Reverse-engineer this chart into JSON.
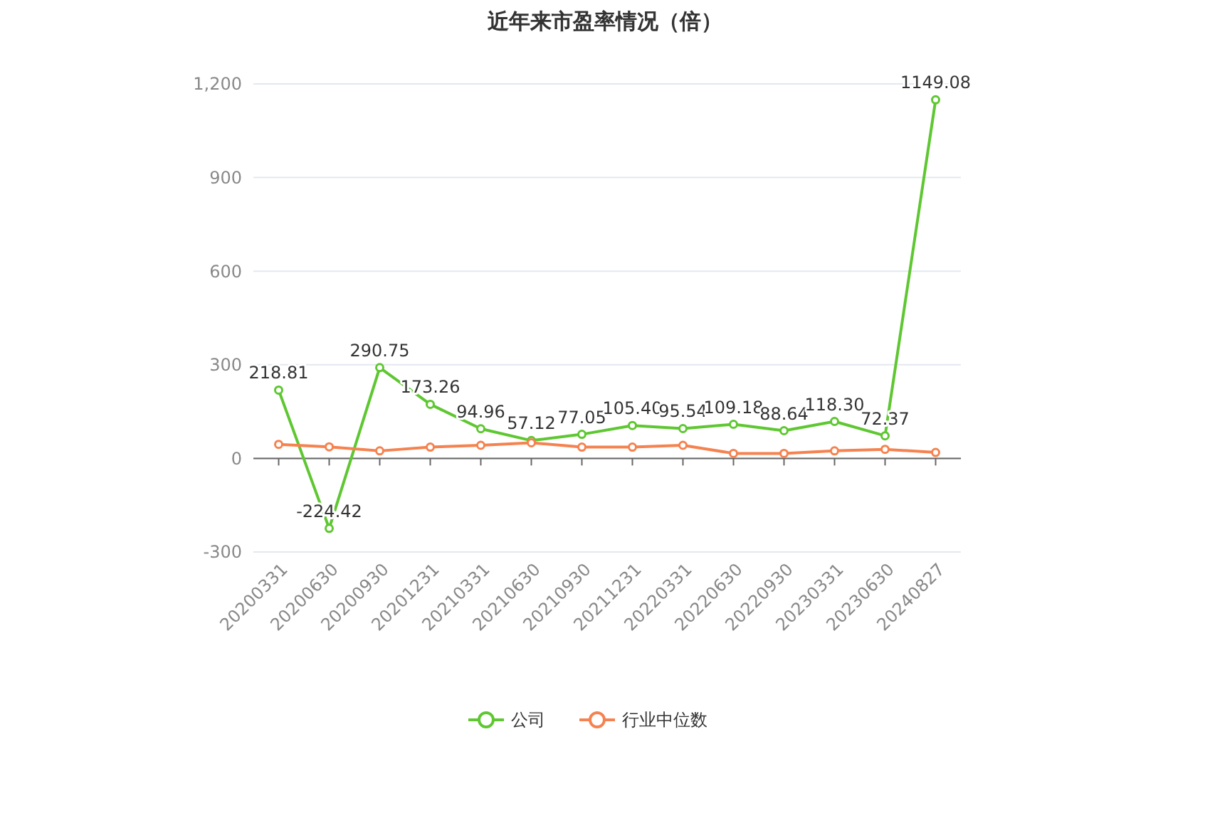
{
  "chart_data": {
    "type": "line",
    "title": "近年来市盈率情况（倍）",
    "categories": [
      "20200331",
      "20200630",
      "20200930",
      "20201231",
      "20210331",
      "20210630",
      "20210930",
      "20211231",
      "20220331",
      "20220630",
      "20220930",
      "20230331",
      "20230630",
      "20240827"
    ],
    "series": [
      {
        "name": "公司",
        "color": "#5ec731",
        "values": [
          218.81,
          -224.42,
          290.75,
          173.26,
          94.96,
          57.12,
          77.05,
          105.4,
          95.54,
          109.18,
          88.64,
          118.3,
          72.37,
          1149.08
        ],
        "value_labels": [
          "218.81",
          "-224.42",
          "290.75",
          "173.26",
          "94.96",
          "57.12",
          "77.05",
          "105.40",
          "95.54",
          "109.18",
          "88.64",
          "118.30",
          "72.37",
          "1149.08"
        ]
      },
      {
        "name": "行业中位数",
        "color": "#f5824f",
        "values": [
          45,
          37,
          24,
          36,
          42,
          50,
          36,
          36,
          42,
          16,
          16,
          24,
          29,
          19
        ]
      }
    ],
    "ylim": [
      -300,
      1200
    ],
    "yticks": [
      -300,
      0,
      300,
      600,
      900,
      {
        "value": 1200,
        "label": "1,200"
      }
    ],
    "grid": "y",
    "legend": "bottom",
    "marker": "circle",
    "line_style": "solid"
  }
}
